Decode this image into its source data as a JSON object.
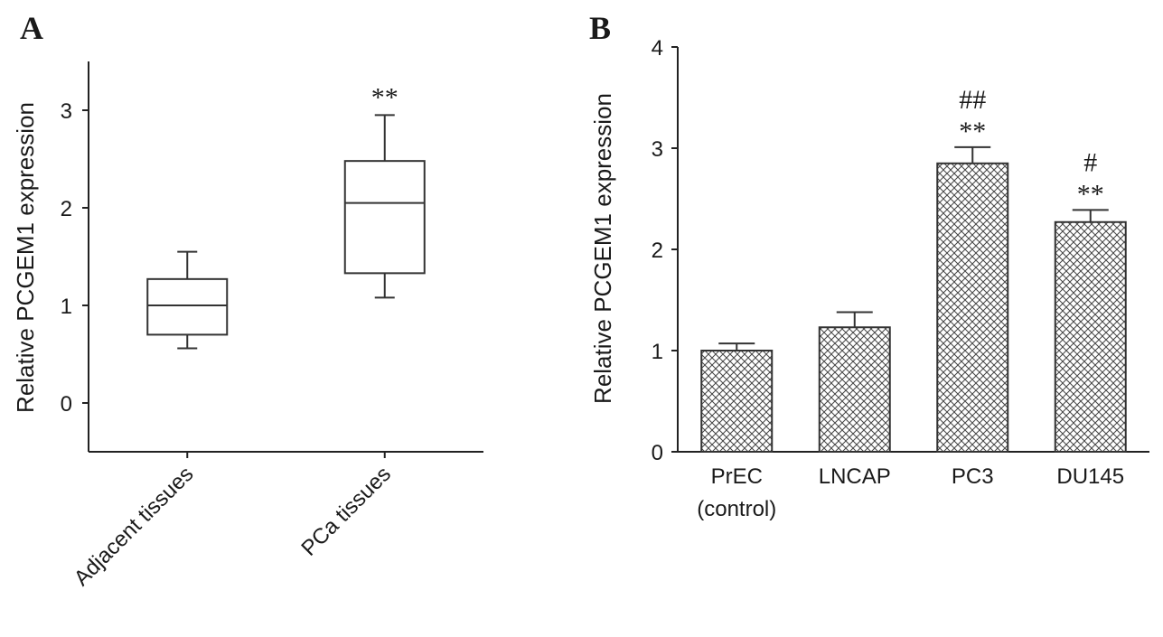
{
  "chart_data": [
    {
      "panel": "A",
      "type": "box",
      "xlabel": "",
      "ylabel": "Relative PCGEM1 expression",
      "ylim": [
        -0.5,
        3.5
      ],
      "yticks": [
        0,
        1,
        2,
        3
      ],
      "categories": [
        "Adjacent tissues",
        "PCa tissues"
      ],
      "boxes": [
        {
          "category": "Adjacent tissues",
          "min": 0.56,
          "q1": 0.7,
          "median": 1.0,
          "q3": 1.27,
          "max": 1.55,
          "annotation": ""
        },
        {
          "category": "PCa tissues",
          "min": 1.08,
          "q1": 1.33,
          "median": 2.05,
          "q3": 2.48,
          "max": 2.95,
          "annotation": "**"
        }
      ]
    },
    {
      "panel": "B",
      "type": "bar",
      "xlabel": "",
      "ylabel": "Relative PCGEM1 expression",
      "ylim": [
        0,
        4
      ],
      "yticks": [
        0,
        1,
        2,
        3,
        4
      ],
      "categories": [
        "PrEC\n(control)",
        "LNCAP",
        "PC3",
        "DU145"
      ],
      "values": [
        1.0,
        1.23,
        2.85,
        2.27
      ],
      "errors": [
        0.07,
        0.15,
        0.16,
        0.12
      ],
      "annotations_top": [
        "",
        "",
        "##",
        "#"
      ],
      "annotations_bottom": [
        "",
        "",
        "**",
        "**"
      ]
    }
  ]
}
